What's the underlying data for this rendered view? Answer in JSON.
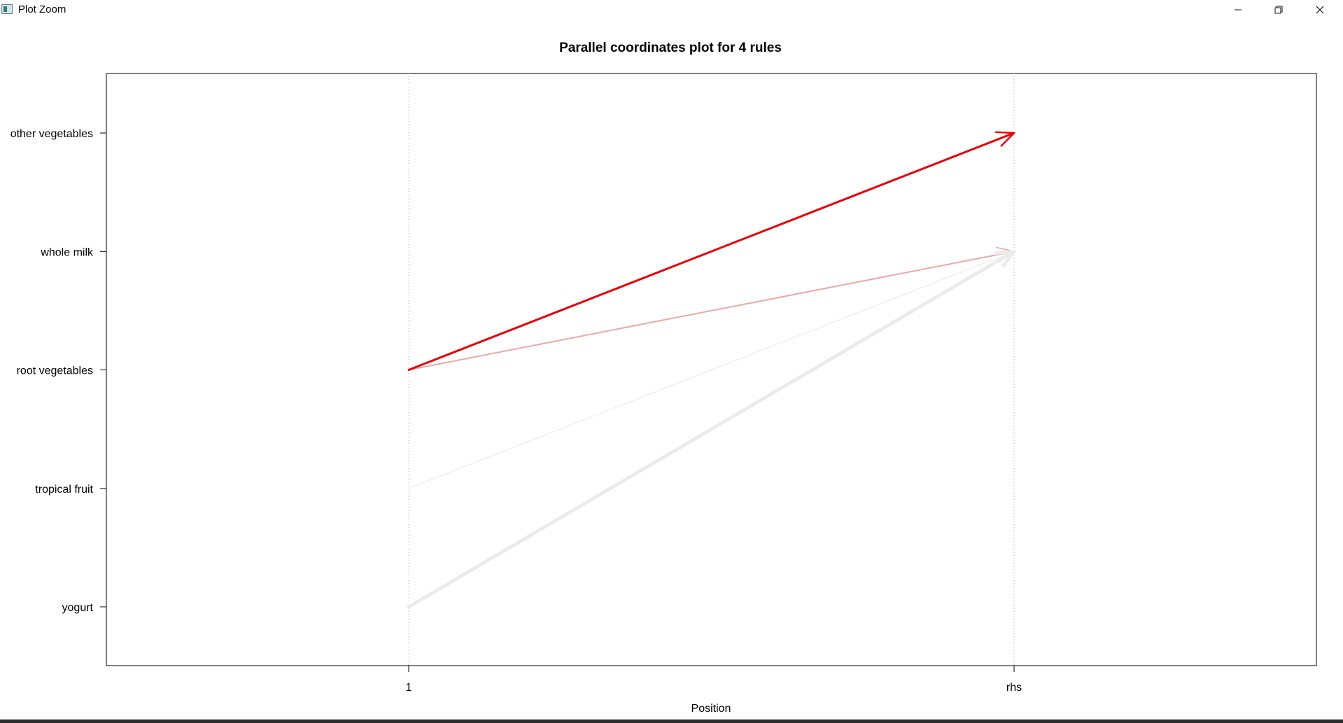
{
  "window": {
    "title": "Plot Zoom",
    "controls": {
      "minimize": "minimize-icon",
      "restore": "restore-icon",
      "close": "close-icon"
    }
  },
  "chart_data": {
    "type": "line",
    "title": "Parallel coordinates plot for 4 rules",
    "xlabel": "Position",
    "ylabel": "",
    "x_categories": [
      "1",
      "rhs"
    ],
    "y_categories": [
      "yogurt",
      "tropical fruit",
      "root vegetables",
      "whole milk",
      "other vegetables"
    ],
    "grid": "vertical dotted lines at each position",
    "rules": [
      {
        "from": "root vegetables",
        "to": "other vegetables",
        "color": "#e8000b",
        "weight": 3
      },
      {
        "from": "root vegetables",
        "to": "whole milk",
        "color": "#eba8a8",
        "weight": 2
      },
      {
        "from": "tropical fruit",
        "to": "whole milk",
        "color": "#f4eeee",
        "weight": 1.5
      },
      {
        "from": "yogurt",
        "to": "whole milk",
        "color": "#ebebeb",
        "weight": 5
      }
    ]
  }
}
